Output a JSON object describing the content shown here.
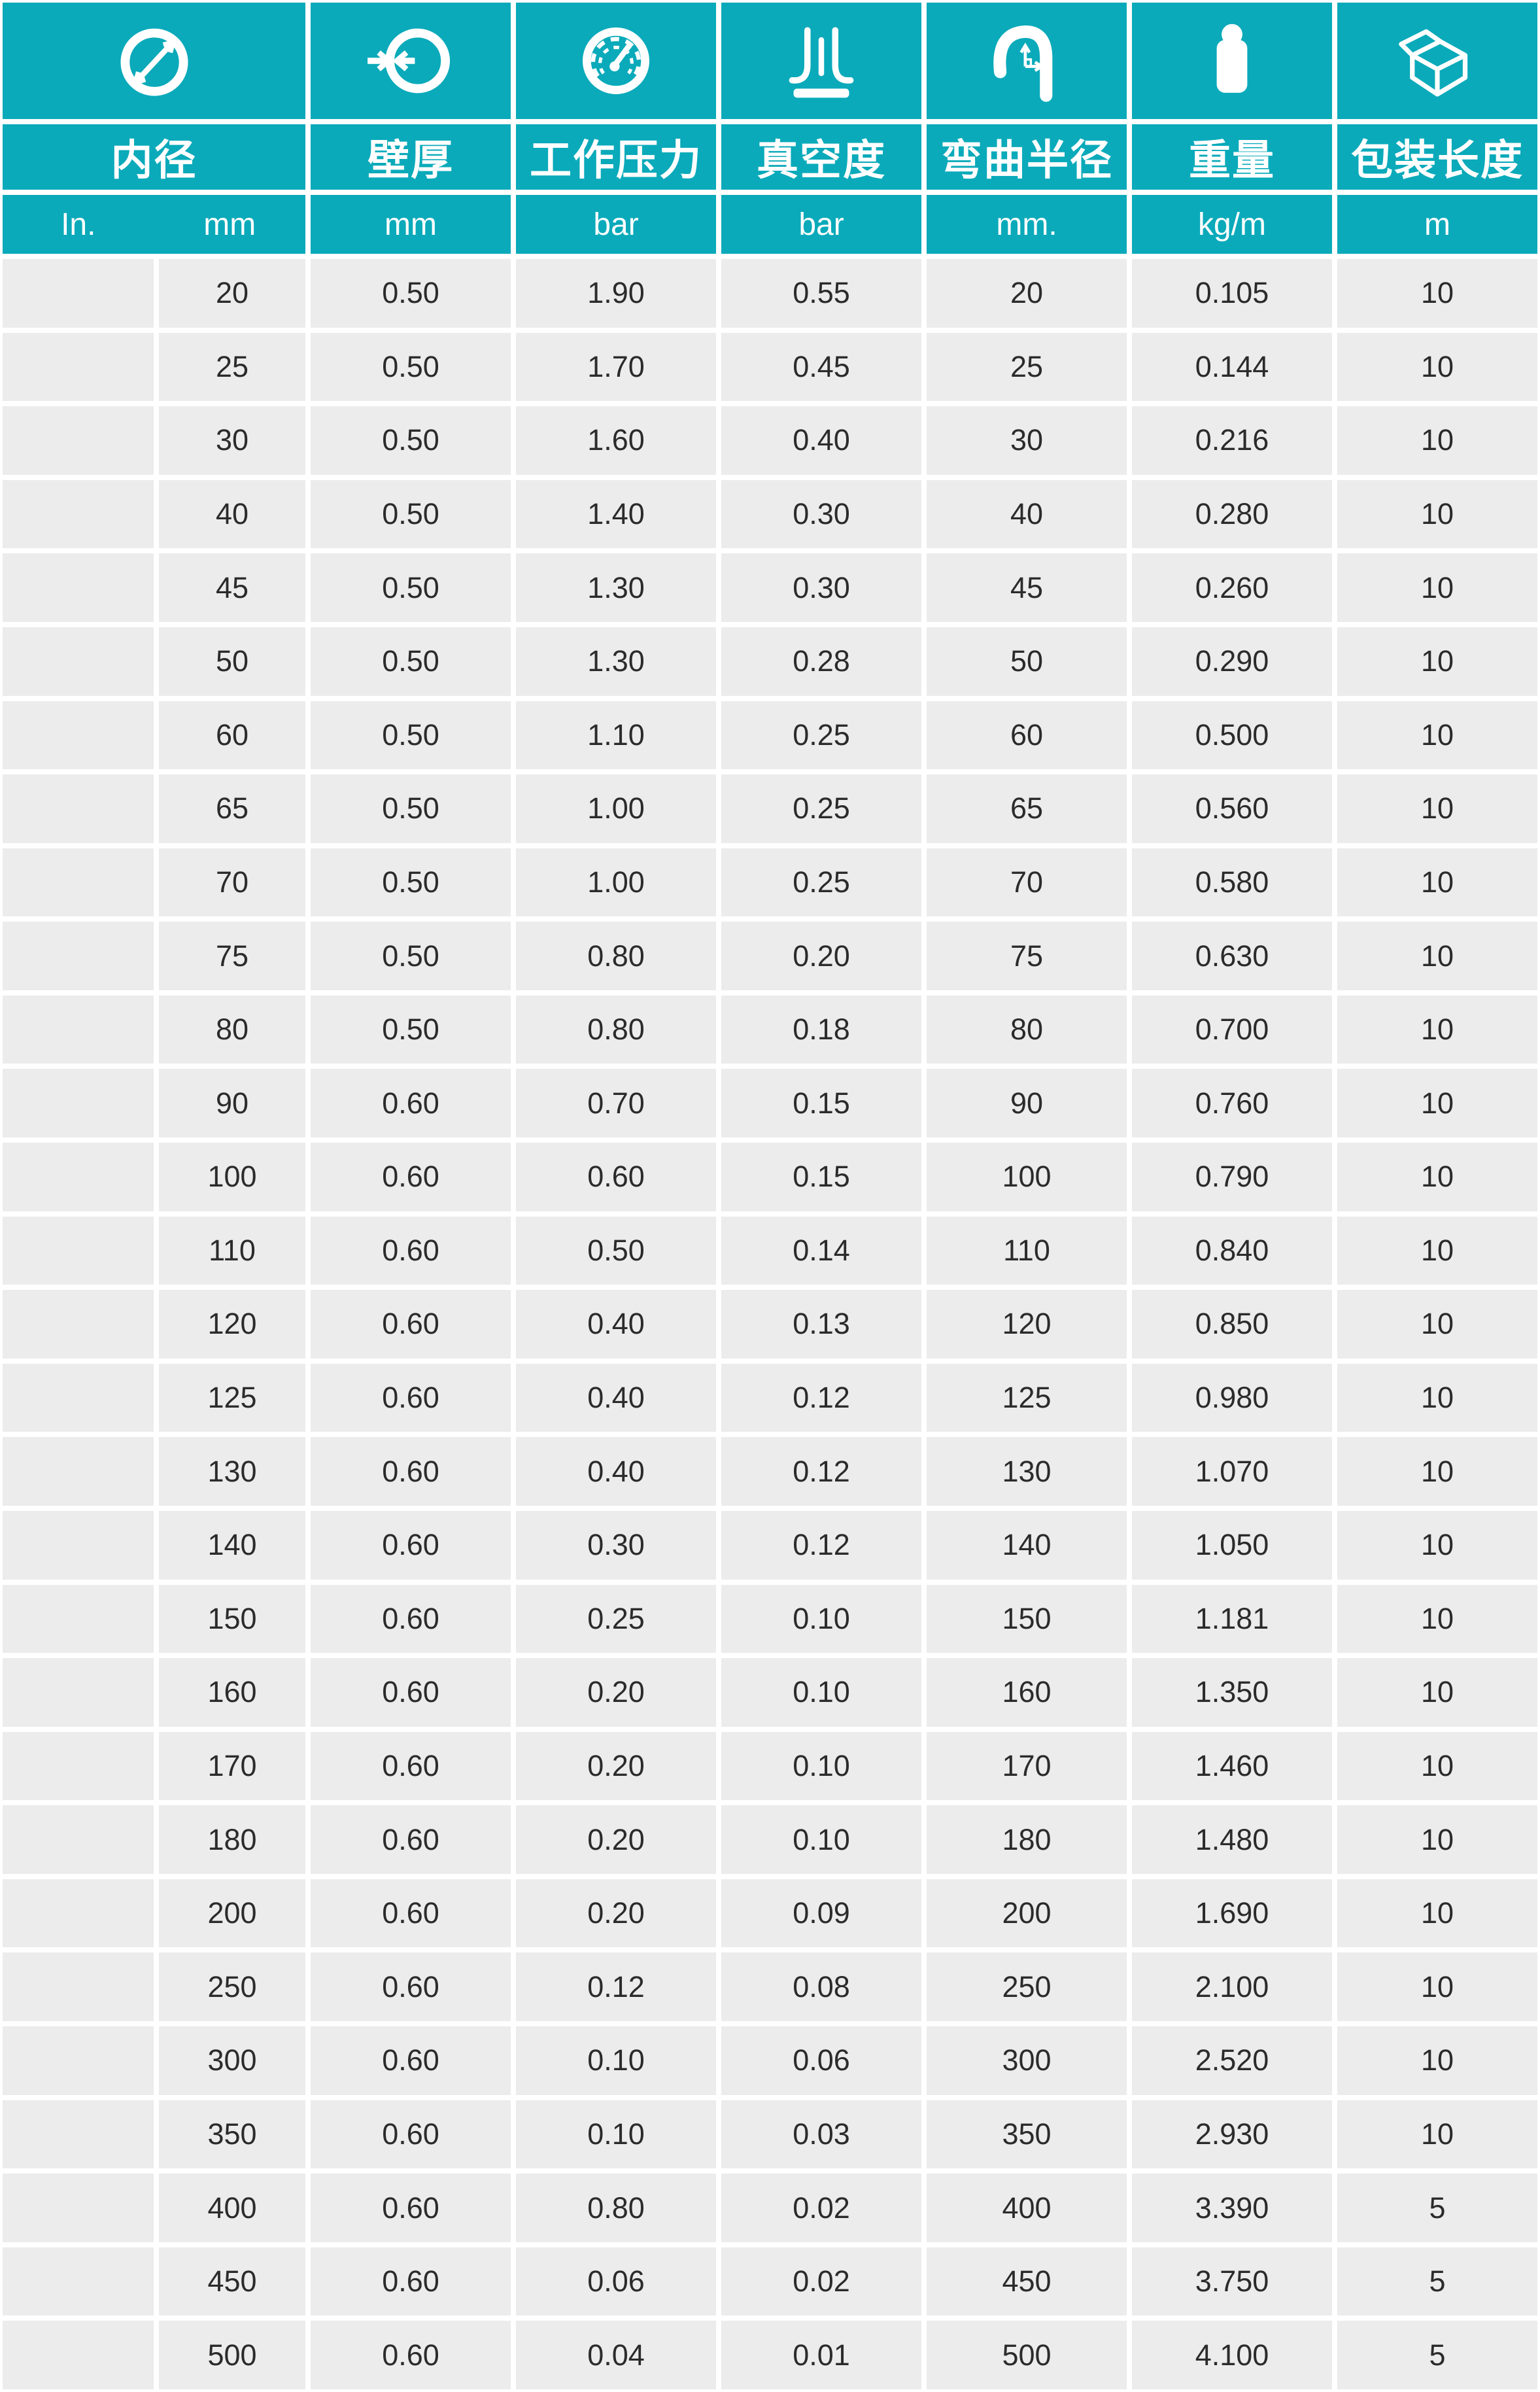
{
  "colors": {
    "teal": "#0aaaba",
    "cell_gray": "#edecec",
    "text": "#2b2b2b",
    "gap_white": "#ffffff"
  },
  "table": {
    "columns": [
      {
        "icon": "inner-diameter-icon",
        "label": "内径",
        "units": [
          "In.",
          "mm"
        ]
      },
      {
        "icon": "wall-thickness-icon",
        "label": "壁厚",
        "unit": "mm"
      },
      {
        "icon": "working-pressure-icon",
        "label": "工作压力",
        "unit": "bar"
      },
      {
        "icon": "vacuum-icon",
        "label": "真空度",
        "unit": "bar"
      },
      {
        "icon": "bend-radius-icon",
        "label": "弯曲半径",
        "unit": "mm."
      },
      {
        "icon": "weight-icon",
        "label": "重量",
        "unit": "kg/m"
      },
      {
        "icon": "package-length-icon",
        "label": "包装长度",
        "unit": "m"
      }
    ],
    "rows": [
      {
        "in": "",
        "mm": "20",
        "wall": "0.50",
        "pressure": "1.90",
        "vacuum": "0.55",
        "bend": "20",
        "weight": "0.105",
        "length": "10"
      },
      {
        "in": "",
        "mm": "25",
        "wall": "0.50",
        "pressure": "1.70",
        "vacuum": "0.45",
        "bend": "25",
        "weight": "0.144",
        "length": "10"
      },
      {
        "in": "",
        "mm": "30",
        "wall": "0.50",
        "pressure": "1.60",
        "vacuum": "0.40",
        "bend": "30",
        "weight": "0.216",
        "length": "10"
      },
      {
        "in": "",
        "mm": "40",
        "wall": "0.50",
        "pressure": "1.40",
        "vacuum": "0.30",
        "bend": "40",
        "weight": "0.280",
        "length": "10"
      },
      {
        "in": "",
        "mm": "45",
        "wall": "0.50",
        "pressure": "1.30",
        "vacuum": "0.30",
        "bend": "45",
        "weight": "0.260",
        "length": "10"
      },
      {
        "in": "",
        "mm": "50",
        "wall": "0.50",
        "pressure": "1.30",
        "vacuum": "0.28",
        "bend": "50",
        "weight": "0.290",
        "length": "10"
      },
      {
        "in": "",
        "mm": "60",
        "wall": "0.50",
        "pressure": "1.10",
        "vacuum": "0.25",
        "bend": "60",
        "weight": "0.500",
        "length": "10"
      },
      {
        "in": "",
        "mm": "65",
        "wall": "0.50",
        "pressure": "1.00",
        "vacuum": "0.25",
        "bend": "65",
        "weight": "0.560",
        "length": "10"
      },
      {
        "in": "",
        "mm": "70",
        "wall": "0.50",
        "pressure": "1.00",
        "vacuum": "0.25",
        "bend": "70",
        "weight": "0.580",
        "length": "10"
      },
      {
        "in": "",
        "mm": "75",
        "wall": "0.50",
        "pressure": "0.80",
        "vacuum": "0.20",
        "bend": "75",
        "weight": "0.630",
        "length": "10"
      },
      {
        "in": "",
        "mm": "80",
        "wall": "0.50",
        "pressure": "0.80",
        "vacuum": "0.18",
        "bend": "80",
        "weight": "0.700",
        "length": "10"
      },
      {
        "in": "",
        "mm": "90",
        "wall": "0.60",
        "pressure": "0.70",
        "vacuum": "0.15",
        "bend": "90",
        "weight": "0.760",
        "length": "10"
      },
      {
        "in": "",
        "mm": "100",
        "wall": "0.60",
        "pressure": "0.60",
        "vacuum": "0.15",
        "bend": "100",
        "weight": "0.790",
        "length": "10"
      },
      {
        "in": "",
        "mm": "110",
        "wall": "0.60",
        "pressure": "0.50",
        "vacuum": "0.14",
        "bend": "110",
        "weight": "0.840",
        "length": "10"
      },
      {
        "in": "",
        "mm": "120",
        "wall": "0.60",
        "pressure": "0.40",
        "vacuum": "0.13",
        "bend": "120",
        "weight": "0.850",
        "length": "10"
      },
      {
        "in": "",
        "mm": "125",
        "wall": "0.60",
        "pressure": "0.40",
        "vacuum": "0.12",
        "bend": "125",
        "weight": "0.980",
        "length": "10"
      },
      {
        "in": "",
        "mm": "130",
        "wall": "0.60",
        "pressure": "0.40",
        "vacuum": "0.12",
        "bend": "130",
        "weight": "1.070",
        "length": "10"
      },
      {
        "in": "",
        "mm": "140",
        "wall": "0.60",
        "pressure": "0.30",
        "vacuum": "0.12",
        "bend": "140",
        "weight": "1.050",
        "length": "10"
      },
      {
        "in": "",
        "mm": "150",
        "wall": "0.60",
        "pressure": "0.25",
        "vacuum": "0.10",
        "bend": "150",
        "weight": "1.181",
        "length": "10"
      },
      {
        "in": "",
        "mm": "160",
        "wall": "0.60",
        "pressure": "0.20",
        "vacuum": "0.10",
        "bend": "160",
        "weight": "1.350",
        "length": "10"
      },
      {
        "in": "",
        "mm": "170",
        "wall": "0.60",
        "pressure": "0.20",
        "vacuum": "0.10",
        "bend": "170",
        "weight": "1.460",
        "length": "10"
      },
      {
        "in": "",
        "mm": "180",
        "wall": "0.60",
        "pressure": "0.20",
        "vacuum": "0.10",
        "bend": "180",
        "weight": "1.480",
        "length": "10"
      },
      {
        "in": "",
        "mm": "200",
        "wall": "0.60",
        "pressure": "0.20",
        "vacuum": "0.09",
        "bend": "200",
        "weight": "1.690",
        "length": "10"
      },
      {
        "in": "",
        "mm": "250",
        "wall": "0.60",
        "pressure": "0.12",
        "vacuum": "0.08",
        "bend": "250",
        "weight": "2.100",
        "length": "10"
      },
      {
        "in": "",
        "mm": "300",
        "wall": "0.60",
        "pressure": "0.10",
        "vacuum": "0.06",
        "bend": "300",
        "weight": "2.520",
        "length": "10"
      },
      {
        "in": "",
        "mm": "350",
        "wall": "0.60",
        "pressure": "0.10",
        "vacuum": "0.03",
        "bend": "350",
        "weight": "2.930",
        "length": "10"
      },
      {
        "in": "",
        "mm": "400",
        "wall": "0.60",
        "pressure": "0.80",
        "vacuum": "0.02",
        "bend": "400",
        "weight": "3.390",
        "length": "5"
      },
      {
        "in": "",
        "mm": "450",
        "wall": "0.60",
        "pressure": "0.06",
        "vacuum": "0.02",
        "bend": "450",
        "weight": "3.750",
        "length": "5"
      },
      {
        "in": "",
        "mm": "500",
        "wall": "0.60",
        "pressure": "0.04",
        "vacuum": "0.01",
        "bend": "500",
        "weight": "4.100",
        "length": "5"
      }
    ]
  }
}
